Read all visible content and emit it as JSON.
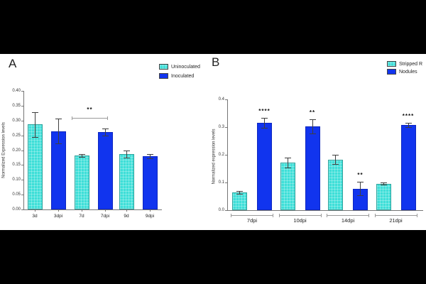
{
  "figure": {
    "description": "Two-panel bar figure of normalized gene expression",
    "background": "#ffffff",
    "letterbox_color": "#000000"
  },
  "colors": {
    "cyan": "#3EDFD8",
    "blue": "#1134EE",
    "axis": "#757575",
    "error_bar": "#3f3f3f",
    "bracket": "#9a9a9a",
    "text": "#1f1f1f"
  },
  "panels": [
    {
      "label": "A",
      "legend": [
        {
          "label": "Uninoculated",
          "color_key": "cyan"
        },
        {
          "label": "Inoculated",
          "color_key": "blue"
        }
      ]
    },
    {
      "label": "B",
      "legend": [
        {
          "label": "Stripped R",
          "color_key": "cyan"
        },
        {
          "label": "Nodules",
          "color_key": "blue"
        }
      ]
    }
  ],
  "chart_data": [
    {
      "type": "bar",
      "panel": "A",
      "title": "",
      "xlabel": "",
      "ylabel": "Normalized Expression levels",
      "ylim": [
        0,
        0.4
      ],
      "yticks": [
        "0.00",
        "0.05",
        "0.10",
        "0.15",
        "0.20",
        "0.25",
        "0.30",
        "0.35",
        "0.40"
      ],
      "grid": false,
      "legend": [
        "Uninoculated",
        "Inoculated"
      ],
      "legend_position": "top-right",
      "categories": [
        "3d",
        "3dpi",
        "7d",
        "7dpi",
        "9d",
        "9dpi"
      ],
      "values": [
        0.287,
        0.264,
        0.182,
        0.261,
        0.187,
        0.18
      ],
      "errors": [
        0.042,
        0.042,
        0.004,
        0.013,
        0.011,
        0.007
      ],
      "bar_color_keys": [
        "cyan",
        "blue",
        "cyan",
        "blue",
        "cyan",
        "blue"
      ],
      "significance_bracket": {
        "label": "**",
        "from_category": "7d",
        "to_category": "7dpi",
        "y_value": 0.31
      }
    },
    {
      "type": "bar",
      "panel": "B",
      "title": "",
      "xlabel": "",
      "ylabel": "Normalized expression levels",
      "ylim": [
        0,
        0.4
      ],
      "yticks": [
        "0.0",
        "0.1",
        "0.2",
        "0.3",
        "0.4"
      ],
      "grid": false,
      "legend": [
        "Stripped R",
        "Nodules"
      ],
      "legend_position": "top-right",
      "categories": [
        "7dpi",
        "10dpi",
        "14dpi",
        "21dpi"
      ],
      "series": [
        {
          "name": "Stripped R",
          "color_key": "cyan",
          "values": [
            0.065,
            0.172,
            0.183,
            0.096
          ],
          "errors": [
            0.005,
            0.018,
            0.016,
            0.004
          ],
          "sig_labels": [
            "",
            "",
            "",
            ""
          ]
        },
        {
          "name": "Nodules",
          "color_key": "blue",
          "values": [
            0.315,
            0.302,
            0.078,
            0.307
          ],
          "errors": [
            0.018,
            0.025,
            0.024,
            0.008
          ],
          "sig_labels": [
            "****",
            "**",
            "**",
            "****"
          ]
        }
      ]
    }
  ]
}
